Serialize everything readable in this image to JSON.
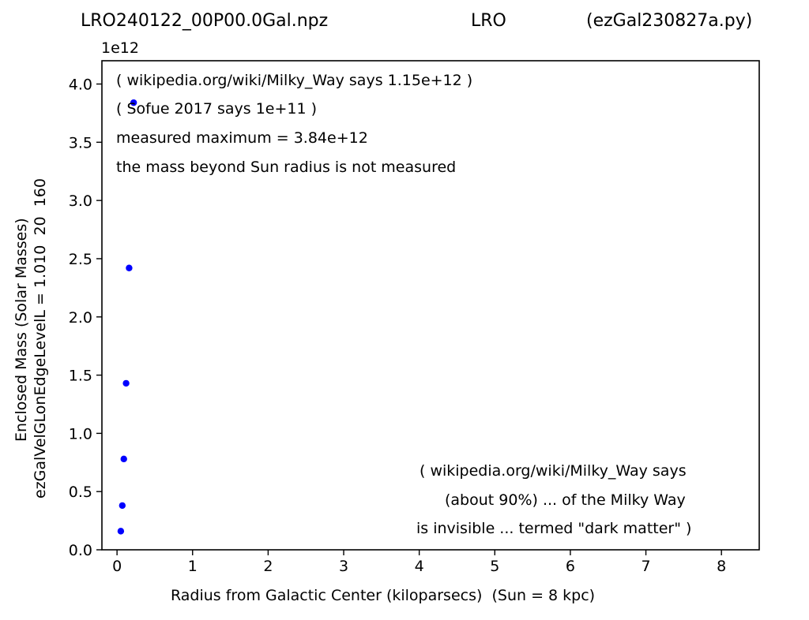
{
  "title": {
    "left": "LRO240122_00P00.0Gal.npz",
    "middle": "LRO",
    "right": "(ezGal230827a.py)"
  },
  "chart_data": {
    "type": "scatter",
    "xlabel": "Radius from Galactic Center (kiloparsecs)  (Sun = 8 kpc)",
    "ylabel": "Enclosed Mass (Solar Masses)",
    "ylabel2": "ezGalVelGLonEdgeLevelL = 1.010  20  160",
    "y_multiplier": "1e12",
    "xlim": [
      -0.2,
      8.5
    ],
    "ylim": [
      0,
      4200000000000.0
    ],
    "x_ticks": [
      0,
      1,
      2,
      3,
      4,
      5,
      6,
      7,
      8
    ],
    "y_ticks": [
      0.0,
      0.5,
      1.0,
      1.5,
      2.0,
      2.5,
      3.0,
      3.5,
      4.0
    ],
    "y_tick_labels": [
      "0.0",
      "0.5",
      "1.0",
      "1.5",
      "2.0",
      "2.5",
      "3.0",
      "3.5",
      "4.0"
    ],
    "grid": false,
    "series": [
      {
        "color": "#0000ff",
        "x": [
          0.05,
          0.07,
          0.09,
          0.12,
          0.16,
          0.22
        ],
        "y": [
          160000000000.0,
          380000000000.0,
          780000000000.0,
          1430000000000.0,
          2420000000000.0,
          3840000000000.0
        ]
      }
    ],
    "annotations": [
      "( wikipedia.org/wiki/Milky_Way says 1.15e+12 )",
      "( Sofue 2017 says 1e+11 )",
      "measured maximum = 3.84e+12",
      "the mass beyond Sun radius is not measured",
      "( wikipedia.org/wiki/Milky_Way says",
      "(about 90%) ... of the Milky Way",
      "is invisible ... termed \"dark matter\" )"
    ]
  }
}
